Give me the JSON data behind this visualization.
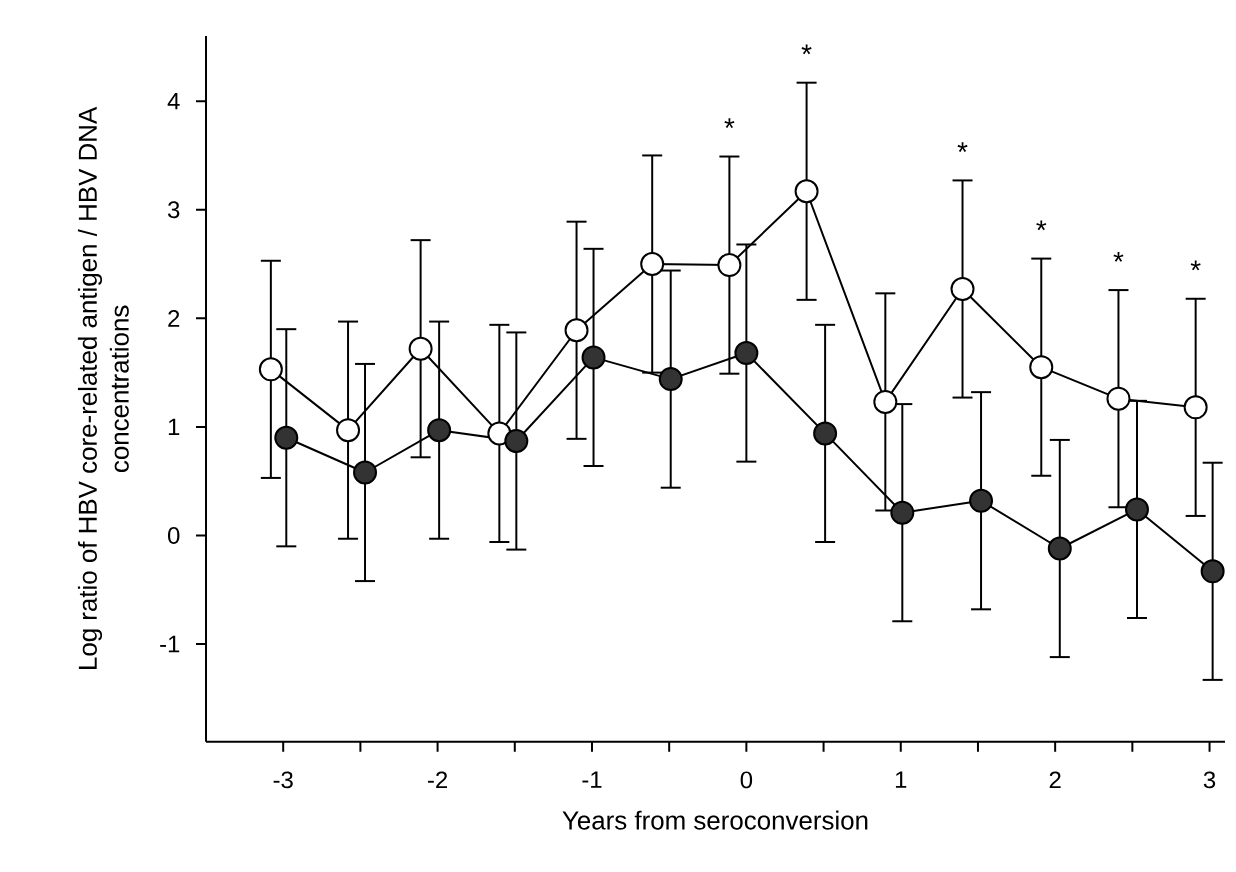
{
  "chart_data": {
    "type": "line",
    "xlabel": "Years from seroconversion",
    "ylabel": "Log ratio of HBV core-related antigen / HBV DNA concentrations",
    "xlim": [
      -3.5,
      3.1
    ],
    "ylim": [
      -1.9,
      4.6
    ],
    "xticks": [
      -3,
      {
        "value": -2.5,
        "label": null
      },
      -2,
      {
        "value": -1.5,
        "label": null
      },
      -1,
      {
        "value": -0.5,
        "label": null
      },
      0,
      {
        "value": 0.5,
        "label": null
      },
      1,
      {
        "value": 1.5,
        "label": null
      },
      2,
      {
        "value": 2.5,
        "label": null
      },
      3
    ],
    "yticks": [
      -1,
      0,
      1,
      2,
      3,
      4
    ],
    "marker": "circle",
    "grid": false,
    "legend": false,
    "series": [
      {
        "color": "#ffffff",
        "x": [
          -3.08,
          -2.58,
          -2.11,
          -1.6,
          -1.1,
          -0.61,
          -0.11,
          0.39,
          0.9,
          1.4,
          1.91,
          2.41,
          2.91
        ],
        "values": [
          1.53,
          0.97,
          1.72,
          0.94,
          1.89,
          2.5,
          2.49,
          3.17,
          1.23,
          2.27,
          1.55,
          1.26,
          1.18
        ],
        "errors": [
          1.0,
          1.0,
          1.0,
          1.0,
          1.0,
          1.0,
          1.0,
          1.0,
          1.0,
          1.0,
          1.0,
          1.0,
          1.0
        ]
      },
      {
        "color": "#333333",
        "x": [
          -2.98,
          -2.47,
          -1.99,
          -1.49,
          -0.99,
          -0.49,
          0.0,
          0.51,
          1.01,
          1.52,
          2.03,
          2.53,
          3.02
        ],
        "values": [
          0.9,
          0.58,
          0.97,
          0.87,
          1.64,
          1.44,
          1.68,
          0.94,
          0.21,
          0.32,
          -0.12,
          0.24,
          -0.33
        ],
        "errors": [
          1.0,
          1.0,
          1.0,
          1.0,
          1.0,
          1.0,
          1.0,
          1.0,
          1.0,
          1.0,
          1.0,
          1.0,
          1.0
        ]
      }
    ],
    "annotations": [
      "*",
      "*",
      "*",
      "*",
      "*",
      "*"
    ]
  }
}
